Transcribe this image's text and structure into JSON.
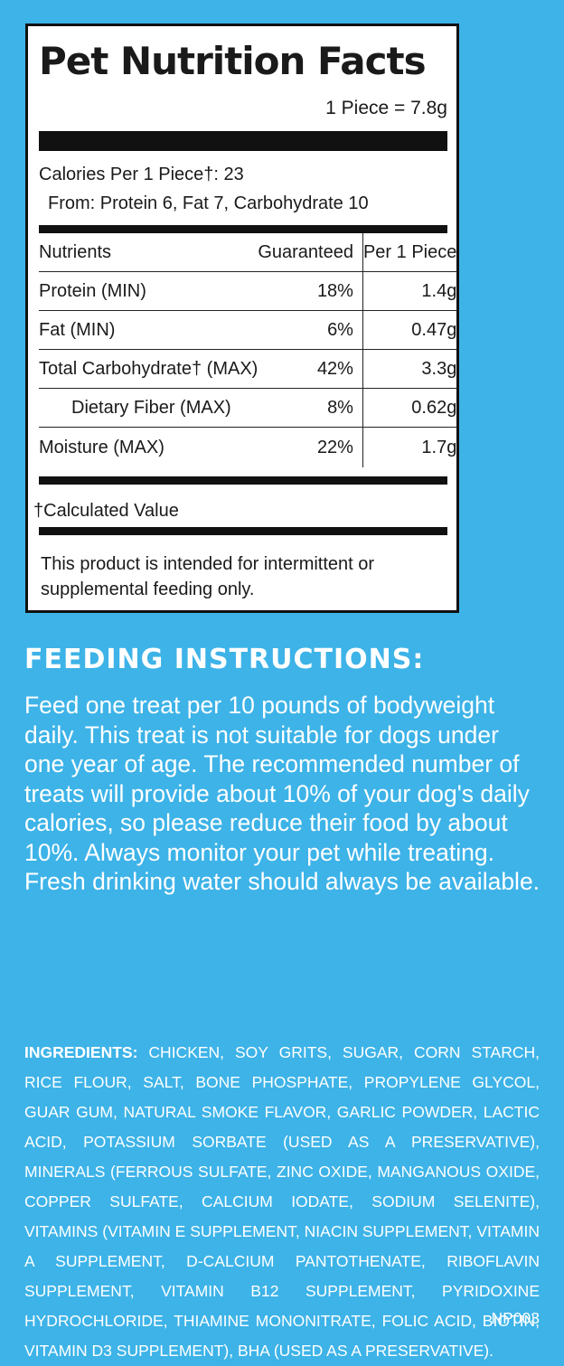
{
  "panel": {
    "title": "Pet Nutrition Facts",
    "serving": "1 Piece = 7.8g",
    "calories": "Calories Per 1 Piece†: 23",
    "calories_from": "From: Protein 6, Fat 7, Carbohydrate 10",
    "header": {
      "nutrients": "Nutrients",
      "guaranteed": "Guaranteed",
      "per_piece": "Per 1 Piece"
    },
    "rows": [
      {
        "name": "Protein (MIN)",
        "guaranteed": "18%",
        "per_piece": "1.4g"
      },
      {
        "name": "Fat (MIN)",
        "guaranteed": "6%",
        "per_piece": "0.47g"
      },
      {
        "name": "Total Carbohydrate† (MAX)",
        "guaranteed": "42%",
        "per_piece": "3.3g"
      },
      {
        "name": "Dietary Fiber (MAX)",
        "guaranteed": "8%",
        "per_piece": "0.62g"
      },
      {
        "name": "Moisture (MAX)",
        "guaranteed": "22%",
        "per_piece": "1.7g"
      }
    ],
    "calculated_note": "†Calculated Value",
    "intended": "This product is intended for intermittent or supplemental feeding only."
  },
  "feeding": {
    "title": "FEEDING INSTRUCTIONS:",
    "text": "Feed one treat per 10 pounds of bodyweight daily. This treat is not suitable for dogs under one year of age. The recommended number of treats will provide about 10% of your dog's daily calories, so please reduce their food by about 10%. Always monitor your pet while treating. Fresh drinking water should always be available."
  },
  "ingredients": {
    "label": "INGREDIENTS:",
    "text": "CHICKEN, SOY GRITS, SUGAR, CORN STARCH, RICE FLOUR, SALT, BONE PHOSPHATE, PROPYLENE GLYCOL, GUAR GUM, NATURAL SMOKE FLAVOR, GARLIC POWDER, LACTIC ACID, POTASSIUM SORBATE (USED AS A PRESERVATIVE), MINERALS (FERROUS SULFATE, ZINC OXIDE, MANGANOUS OXIDE, COPPER SULFATE, CALCIUM IODATE, SODIUM SELENITE), VITAMINS (VITAMIN E SUPPLEMENT, NIACIN SUPPLEMENT, VITAMIN A SUPPLEMENT, D-CALCIUM PANTOTHENATE, RIBOFLAVIN SUPPLEMENT, VITAMIN B12 SUPPLEMENT, PYRIDOXINE HYDROCHLORIDE, THIAMINE MONONITRATE, FOLIC ACID, BIOTIN, VITAMIN D3 SUPPLEMENT), BHA (USED AS A PRESERVATIVE).",
    "code": "NP003"
  },
  "colors": {
    "background": "#3db3e8",
    "panel": "#ffffff",
    "ink": "#111111",
    "text_light": "#ffffff"
  }
}
